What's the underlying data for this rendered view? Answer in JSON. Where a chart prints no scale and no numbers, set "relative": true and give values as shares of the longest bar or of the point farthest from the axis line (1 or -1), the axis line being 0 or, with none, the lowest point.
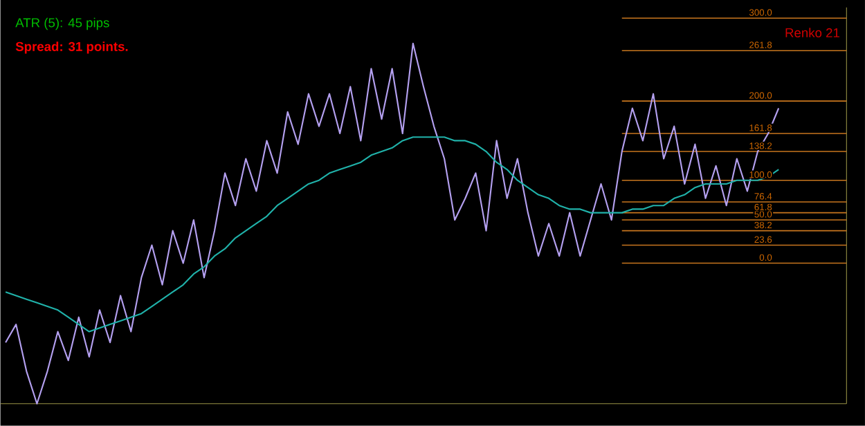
{
  "chart_data": {
    "type": "line",
    "relative": true,
    "categories": [
      null,
      null,
      null,
      null,
      null,
      null,
      null,
      null,
      null,
      null,
      null,
      null,
      null,
      null,
      null,
      null,
      null,
      null,
      null,
      null,
      null,
      null,
      null,
      null,
      null,
      null,
      null,
      null,
      null,
      null,
      null,
      null,
      null,
      null,
      null,
      null,
      null,
      null,
      null,
      null,
      null,
      null,
      null,
      null,
      null,
      null,
      null,
      null,
      null,
      null,
      null,
      null,
      null,
      null,
      null,
      null,
      null,
      null,
      null,
      null,
      null,
      null,
      null,
      null,
      null,
      null,
      null,
      null,
      null,
      null,
      null,
      null,
      null,
      null,
      null
    ],
    "series": [
      {
        "color": "#b4a0f0",
        "values": [
          0.17,
          0.22,
          0.09,
          0,
          0.09,
          0.2,
          0.12,
          0.24,
          0.13,
          0.26,
          0.17,
          0.3,
          0.2,
          0.35,
          0.44,
          0.33,
          0.48,
          0.39,
          0.51,
          0.35,
          0.48,
          0.64,
          0.55,
          0.68,
          0.59,
          0.73,
          0.64,
          0.81,
          0.72,
          0.86,
          0.77,
          0.86,
          0.75,
          0.88,
          0.73,
          0.93,
          0.79,
          0.93,
          0.75,
          1,
          0.88,
          0.77,
          0.68,
          0.51,
          0.57,
          0.64,
          0.48,
          0.73,
          0.57,
          0.68,
          0.53,
          0.41,
          0.5,
          0.41,
          0.53,
          0.41,
          0.51,
          0.61,
          0.51,
          0.7,
          0.82,
          0.73,
          0.86,
          0.68,
          0.77,
          0.61,
          0.72,
          0.57,
          0.66,
          0.55,
          0.68,
          0.59,
          0.7,
          0.75,
          0.82
        ]
      },
      {
        "color": "#20b2aa",
        "values": [
          0.31,
          0.3,
          0.29,
          0.28,
          0.27,
          0.26,
          0.24,
          0.22,
          0.2,
          0.21,
          0.22,
          0.23,
          0.24,
          0.25,
          0.27,
          0.29,
          0.31,
          0.33,
          0.36,
          0.38,
          0.41,
          0.43,
          0.46,
          0.48,
          0.5,
          0.52,
          0.55,
          0.57,
          0.59,
          0.61,
          0.62,
          0.64,
          0.65,
          0.66,
          0.67,
          0.69,
          0.7,
          0.71,
          0.73,
          0.74,
          0.74,
          0.74,
          0.74,
          0.73,
          0.73,
          0.72,
          0.7,
          0.67,
          0.65,
          0.62,
          0.6,
          0.58,
          0.57,
          0.55,
          0.54,
          0.54,
          0.53,
          0.53,
          0.53,
          0.53,
          0.54,
          0.54,
          0.55,
          0.55,
          0.57,
          0.58,
          0.6,
          0.61,
          0.61,
          0.61,
          0.62,
          0.62,
          0.62,
          0.63,
          0.65
        ]
      }
    ],
    "ref_lines": [
      {
        "axis": "y",
        "value": 0.39,
        "color": "#c8761e"
      },
      {
        "axis": "y",
        "value": 0.44,
        "color": "#c8761e"
      },
      {
        "axis": "y",
        "value": 0.48,
        "color": "#c8761e"
      },
      {
        "axis": "y",
        "value": 0.51,
        "color": "#c8761e"
      },
      {
        "axis": "y",
        "value": 0.53,
        "color": "#c8761e"
      },
      {
        "axis": "y",
        "value": 0.56,
        "color": "#c8761e"
      },
      {
        "axis": "y",
        "value": 0.62,
        "color": "#c8761e"
      },
      {
        "axis": "y",
        "value": 0.7,
        "color": "#c8761e"
      },
      {
        "axis": "y",
        "value": 0.75,
        "color": "#c8761e"
      },
      {
        "axis": "y",
        "value": 0.84,
        "color": "#c8761e"
      },
      {
        "axis": "y",
        "value": 0.98,
        "color": "#c8761e"
      },
      {
        "axis": "y",
        "value": 1.07,
        "color": "#c8761e"
      }
    ],
    "annotations": [
      "ATR (5): 45 pips",
      "Spread: 31 points.",
      "Renko 21",
      {
        "text": "0.0",
        "y": 0.39
      },
      {
        "text": "23.6",
        "y": 0.44
      },
      {
        "text": "38.2",
        "y": 0.48
      },
      {
        "text": "50.0",
        "y": 0.51
      },
      {
        "text": "61.8",
        "y": 0.53
      },
      {
        "text": "76.4",
        "y": 0.56
      },
      {
        "text": "100.0",
        "y": 0.62
      },
      {
        "text": "138.2",
        "y": 0.7
      },
      {
        "text": "161.8",
        "y": 0.75
      },
      {
        "text": "200.0",
        "y": 0.84
      },
      {
        "text": "261.8",
        "y": 0.98
      },
      {
        "text": "300.0",
        "y": 1.07
      }
    ]
  }
}
